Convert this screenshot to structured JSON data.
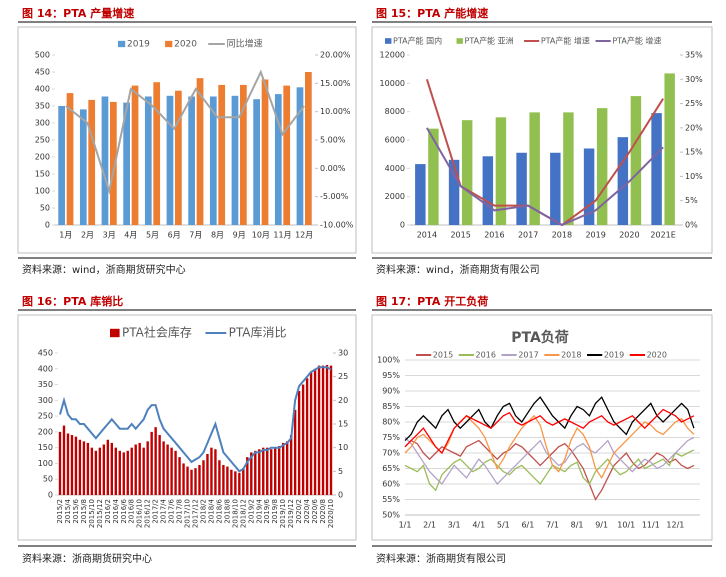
{
  "chart_data": [
    {
      "type": "combo",
      "caption": "图 14：PTA 产量增速",
      "source": "资料来源：wind，浙商期货研究中心",
      "categories": [
        "1月",
        "2月",
        "3月",
        "4月",
        "5月",
        "6月",
        "7月",
        "8月",
        "9月",
        "10月",
        "11月",
        "12月"
      ],
      "series": [
        {
          "name": "2019",
          "type": "bar",
          "color": "#5b9bd5",
          "values": [
            350,
            340,
            378,
            360,
            378,
            380,
            378,
            378,
            380,
            370,
            385,
            405
          ]
        },
        {
          "name": "2020",
          "type": "bar",
          "color": "#ed7d31",
          "values": [
            388,
            368,
            362,
            410,
            420,
            395,
            432,
            412,
            412,
            428,
            410,
            450
          ]
        },
        {
          "name": "同比增速",
          "type": "line",
          "axis": "y2",
          "color": "#a5a5a5",
          "values": [
            11,
            8,
            -4,
            14,
            11,
            7,
            14,
            9,
            9,
            17,
            6,
            11
          ]
        }
      ],
      "ylim": [
        0,
        500
      ],
      "yticks": [
        0,
        50,
        100,
        150,
        200,
        250,
        300,
        350,
        400,
        450,
        500
      ],
      "y2lim": [
        -10,
        20
      ],
      "y2ticks": [
        {
          "value": -10,
          "label": "-10.00%"
        },
        {
          "value": -5,
          "label": "-5.00%"
        },
        {
          "value": 0,
          "label": "0.00%"
        },
        {
          "value": 5,
          "label": "5.00%"
        },
        {
          "value": 10,
          "label": "10.00%"
        },
        {
          "value": 15,
          "label": "15.00%"
        },
        {
          "value": 20,
          "label": "20.00%"
        }
      ],
      "grid": false
    },
    {
      "type": "combo",
      "caption": "图 15：PTA 产能增速",
      "source": "资料来源：wind，浙商期货有限公司",
      "categories": [
        "2014",
        "2015",
        "2016",
        "2017",
        "2018",
        "2019",
        "2020",
        "2021E"
      ],
      "series": [
        {
          "name": "PTA产能 国内",
          "type": "bar",
          "color": "#4472c4",
          "values": [
            4300,
            4600,
            4850,
            5100,
            5100,
            5400,
            6200,
            7900
          ]
        },
        {
          "name": "PTA产能 亚洲",
          "type": "bar",
          "color": "#92c050",
          "values": [
            6800,
            7400,
            7600,
            7950,
            7950,
            8250,
            9100,
            10700
          ]
        },
        {
          "name": "PTA产能 增速",
          "type": "line",
          "axis": "y2",
          "color": "#c0504d",
          "values": [
            30,
            8,
            4,
            4,
            0,
            5,
            15,
            26
          ]
        },
        {
          "name": "PTA产能 增速",
          "type": "line",
          "axis": "y2",
          "color": "#8064a2",
          "values": [
            20,
            8,
            3,
            4,
            0,
            3,
            9,
            16
          ]
        }
      ],
      "ylim": [
        0,
        12000
      ],
      "yticks": [
        0,
        2000,
        4000,
        6000,
        8000,
        10000,
        12000
      ],
      "y2lim": [
        0,
        35
      ],
      "y2ticks": [
        {
          "value": 0,
          "label": "0%"
        },
        {
          "value": 5,
          "label": "5%"
        },
        {
          "value": 10,
          "label": "10%"
        },
        {
          "value": 15,
          "label": "15%"
        },
        {
          "value": 20,
          "label": "20%"
        },
        {
          "value": 25,
          "label": "25%"
        },
        {
          "value": 30,
          "label": "30%"
        },
        {
          "value": 35,
          "label": "35%"
        }
      ],
      "grid": false
    },
    {
      "type": "combo",
      "caption": "图 16：PTA 库销比",
      "source": "资料来源：浙商期货研究中心",
      "categories": [
        "2015/2",
        null,
        "2015/4",
        null,
        "2015/6",
        null,
        "2015/8",
        null,
        "2015/10",
        null,
        "2015/12",
        null,
        "2016/2",
        null,
        "2016/4",
        null,
        "2016/6",
        null,
        "2016/8",
        null,
        "2016/10",
        null,
        "2016/12",
        null,
        "2017/2",
        null,
        "2017/4",
        null,
        "2017/6",
        null,
        "2017/8",
        null,
        "2017/10",
        null,
        "2017/12",
        null,
        "2018/2",
        null,
        "2018/4",
        null,
        "2018/6",
        null,
        "2018/8",
        null,
        "2018/10",
        null,
        "2018/12",
        null,
        "2019/2",
        null,
        "2019/4",
        null,
        "2019/6",
        null,
        "2019/8",
        null,
        "2019/10",
        null,
        "2019/12",
        null,
        "2020/2",
        null,
        "2020/4",
        null,
        "2020/6",
        null,
        "2020/8",
        null,
        "2020/10"
      ],
      "series": [
        {
          "name": "PTA社会库存",
          "type": "bar",
          "color": "#c00000",
          "values": [
            200,
            220,
            195,
            190,
            185,
            175,
            170,
            165,
            150,
            140,
            150,
            160,
            175,
            165,
            150,
            140,
            135,
            140,
            150,
            160,
            165,
            150,
            170,
            200,
            215,
            190,
            170,
            160,
            150,
            140,
            120,
            100,
            90,
            80,
            85,
            95,
            110,
            130,
            150,
            145,
            110,
            95,
            90,
            80,
            75,
            70,
            85,
            120,
            135,
            140,
            145,
            150,
            150,
            145,
            150,
            155,
            165,
            170,
            190,
            270,
            330,
            350,
            370,
            390,
            400,
            410,
            410,
            412,
            410
          ]
        },
        {
          "name": "PTA库消比",
          "type": "line",
          "axis": "y2",
          "color": "#4f81bd",
          "values": [
            17,
            20,
            17,
            16,
            16,
            15,
            15,
            14,
            13,
            12,
            13,
            14,
            15,
            16,
            15,
            14,
            14,
            14,
            15,
            14,
            15,
            16,
            18,
            19,
            19,
            16,
            14,
            13,
            12,
            11,
            10,
            9,
            8,
            7,
            7.5,
            8,
            9,
            11,
            13,
            15,
            12,
            9,
            8,
            7,
            6,
            5,
            5.5,
            7,
            8,
            9,
            9,
            9.5,
            9.5,
            10,
            10,
            10,
            10.5,
            11,
            12,
            20,
            23,
            24,
            25,
            26,
            26.5,
            27,
            27,
            27,
            26.5
          ]
        }
      ],
      "ylim": [
        0,
        450
      ],
      "yticks": [
        0,
        50,
        100,
        150,
        200,
        250,
        300,
        350,
        400,
        450
      ],
      "y2lim": [
        0,
        30
      ],
      "y2ticks": [
        0,
        5,
        10,
        15,
        20,
        25,
        30
      ],
      "grid": false
    },
    {
      "type": "line",
      "caption": "图 17：PTA 开工负荷",
      "title": "PTA负荷",
      "source": "资料来源：浙商期货有限公司",
      "categories": [
        "1/1",
        null,
        null,
        null,
        "2/1",
        null,
        null,
        null,
        "3/1",
        null,
        null,
        null,
        "4/1",
        null,
        null,
        null,
        "5/1",
        null,
        null,
        null,
        "6/1",
        null,
        null,
        null,
        "7/1",
        null,
        null,
        null,
        "8/1",
        null,
        null,
        null,
        "9/1",
        null,
        null,
        null,
        "10/1",
        null,
        null,
        null,
        "11/1",
        null,
        null,
        null,
        "12/1",
        null,
        null,
        null
      ],
      "series": [
        {
          "name": "2015",
          "color": "#c0504d",
          "values": [
            72,
            74,
            73,
            70,
            68,
            70,
            72,
            71,
            70,
            69,
            72,
            73,
            74,
            72,
            70,
            68,
            70,
            71,
            73,
            72,
            70,
            68,
            66,
            68,
            70,
            72,
            73,
            71,
            68,
            65,
            60,
            55,
            58,
            62,
            66,
            68,
            70,
            67,
            65,
            66,
            68,
            70,
            69,
            67,
            68,
            66,
            65,
            66
          ]
        },
        {
          "name": "2016",
          "color": "#9bbb59",
          "values": [
            66,
            65,
            64,
            66,
            60,
            58,
            63,
            65,
            67,
            68,
            66,
            64,
            65,
            67,
            68,
            66,
            64,
            63,
            65,
            66,
            64,
            62,
            60,
            63,
            66,
            65,
            64,
            66,
            67,
            62,
            60,
            64,
            66,
            68,
            65,
            63,
            64,
            66,
            68,
            65,
            66,
            67,
            68,
            66,
            70,
            69,
            70,
            71
          ]
        },
        {
          "name": "2017",
          "color": "#b3a2c7",
          "values": [
            75,
            73,
            70,
            67,
            64,
            62,
            60,
            63,
            66,
            64,
            62,
            65,
            68,
            66,
            63,
            60,
            62,
            64,
            66,
            68,
            70,
            72,
            74,
            70,
            68,
            66,
            67,
            70,
            72,
            73,
            71,
            70,
            72,
            74,
            70,
            68,
            66,
            64,
            66,
            68,
            67,
            65,
            66,
            68,
            70,
            72,
            74,
            75
          ]
        },
        {
          "name": "2018",
          "color": "#f79646",
          "values": [
            70,
            72,
            75,
            76,
            74,
            72,
            70,
            73,
            78,
            80,
            82,
            80,
            78,
            75,
            70,
            65,
            68,
            72,
            75,
            78,
            80,
            82,
            79,
            72,
            66,
            64,
            68,
            74,
            78,
            76,
            72,
            65,
            62,
            66,
            70,
            72,
            74,
            76,
            78,
            80,
            79,
            77,
            76,
            78,
            80,
            81,
            78,
            76
          ]
        },
        {
          "name": "2019",
          "color": "#000000",
          "values": [
            74,
            76,
            80,
            82,
            80,
            78,
            82,
            84,
            80,
            78,
            80,
            82,
            84,
            80,
            78,
            82,
            85,
            86,
            82,
            80,
            83,
            86,
            88,
            85,
            82,
            80,
            78,
            82,
            85,
            84,
            82,
            86,
            88,
            84,
            80,
            78,
            76,
            80,
            82,
            84,
            86,
            82,
            80,
            82,
            84,
            86,
            84,
            78
          ]
        },
        {
          "name": "2020",
          "color": "#ff0000",
          "values": [
            72,
            74,
            76,
            78,
            75,
            72,
            70,
            74,
            78,
            80,
            82,
            81,
            80,
            79,
            78,
            80,
            82,
            83,
            80,
            79,
            80,
            81,
            82,
            80,
            79,
            80,
            81,
            80,
            79,
            78,
            80,
            81,
            82,
            80,
            79,
            80,
            81,
            82,
            80,
            78,
            80,
            82,
            84,
            83,
            82,
            80,
            81,
            82
          ]
        }
      ],
      "ylim": [
        50,
        100
      ],
      "yticks": [
        {
          "value": 50,
          "label": "50%"
        },
        {
          "value": 55,
          "label": "55%"
        },
        {
          "value": 60,
          "label": "60%"
        },
        {
          "value": 65,
          "label": "65%"
        },
        {
          "value": 70,
          "label": "70%"
        },
        {
          "value": 75,
          "label": "75%"
        },
        {
          "value": 80,
          "label": "80%"
        },
        {
          "value": 85,
          "label": "85%"
        },
        {
          "value": 90,
          "label": "90%"
        },
        {
          "value": 95,
          "label": "95%"
        },
        {
          "value": 100,
          "label": "100%"
        }
      ],
      "grid": true
    }
  ]
}
